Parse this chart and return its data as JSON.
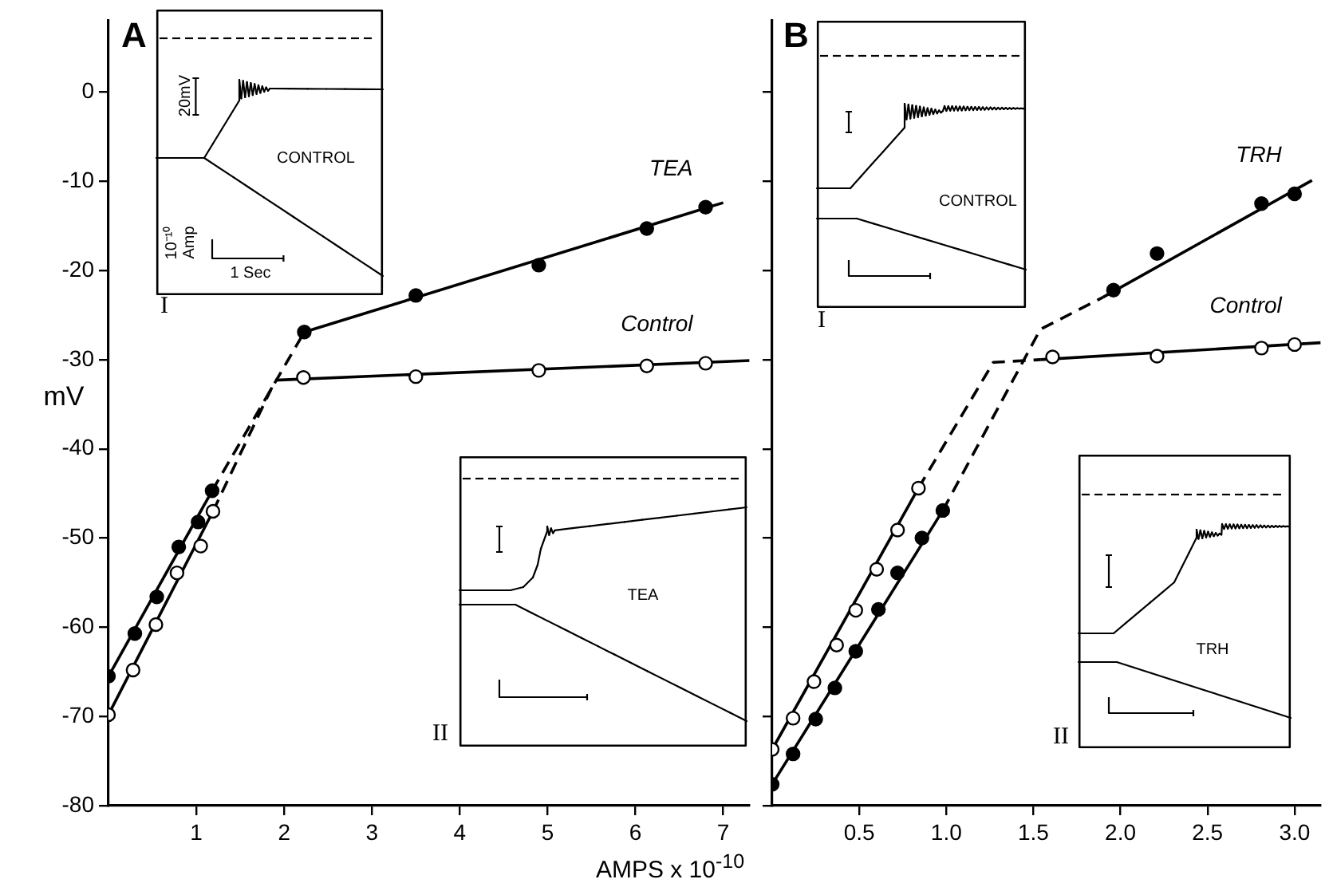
{
  "chart_data": [
    {
      "type": "scatter",
      "xlabel": "AMPS x 10$^{-10}$",
      "ylabel": "mV",
      "xlim": [
        0,
        7.3
      ],
      "xticks": [
        1,
        2,
        3,
        4,
        5,
        6,
        7
      ],
      "ylim": [
        -80,
        8
      ],
      "yticks": [
        -80,
        -70,
        -60,
        -50,
        -40,
        -30,
        -20,
        -10,
        0
      ],
      "marker": "circle",
      "legend": false,
      "grid": false,
      "annotations": [
        "A",
        "20mV",
        "CONTROL",
        "10⁻¹⁰ Amp",
        "1 Sec",
        "I",
        "TEA",
        "II"
      ],
      "series": [
        {
          "name": "TEA",
          "type": "scatter",
          "color": "#000000",
          "x": [
            0,
            0.3,
            0.55,
            0.8,
            1.02,
            1.18,
            2.23,
            3.5,
            4.9,
            6.13,
            6.8
          ],
          "values": [
            -65.5,
            -60.7,
            -56.6,
            -51,
            -48.2,
            -44.7,
            -26.9,
            -22.8,
            -19.4,
            -15.3,
            -12.9
          ]
        },
        {
          "name": "Control",
          "type": "scatter",
          "color": "#ffffff",
          "x": [
            0,
            0.28,
            0.54,
            0.78,
            1.05,
            1.19,
            2.22,
            3.5,
            4.9,
            6.13,
            6.8
          ],
          "values": [
            -69.8,
            -64.8,
            -59.7,
            -53.9,
            -50.9,
            -47,
            -32,
            -31.9,
            -31.2,
            -30.7,
            -30.4
          ]
        },
        {
          "type": "line",
          "color": "#000000",
          "marker": "none",
          "line_style": "solid",
          "x": [
            0,
            1.18
          ],
          "values": [
            -65.5,
            -44.7
          ]
        },
        {
          "type": "line",
          "color": "#000000",
          "marker": "none",
          "line_style": "dashed",
          "x": [
            1.18,
            2.23
          ],
          "values": [
            -44.7,
            -26.9
          ]
        },
        {
          "type": "line",
          "color": "#000000",
          "marker": "none",
          "line_style": "solid",
          "x": [
            2.23,
            7.0
          ],
          "values": [
            -26.9,
            -12.4
          ]
        },
        {
          "type": "line",
          "color": "#000000",
          "marker": "none",
          "line_style": "solid",
          "x": [
            0,
            1.19
          ],
          "values": [
            -69.8,
            -47
          ]
        },
        {
          "type": "line",
          "color": "#000000",
          "marker": "none",
          "line_style": "dashed",
          "x": [
            1.19,
            1.9
          ],
          "values": [
            -47,
            -32.3
          ]
        },
        {
          "type": "line",
          "color": "#000000",
          "marker": "none",
          "line_style": "solid",
          "x": [
            1.9,
            7.3
          ],
          "values": [
            -32.3,
            -30.1
          ]
        }
      ]
    },
    {
      "type": "scatter",
      "xlim": [
        0,
        3.15
      ],
      "xticks": [
        0.5,
        {
          "value": 1,
          "label": "1.0"
        },
        1.5,
        {
          "value": 2,
          "label": "2.0"
        },
        2.5,
        {
          "value": 3,
          "label": "3.0"
        }
      ],
      "ylim": [
        -80,
        8
      ],
      "yticks": [
        {
          "value": -80,
          "label": null
        },
        {
          "value": -70,
          "label": null
        },
        {
          "value": -60,
          "label": null
        },
        {
          "value": -50,
          "label": null
        },
        {
          "value": -40,
          "label": null
        },
        {
          "value": -30,
          "label": null
        },
        {
          "value": -20,
          "label": null
        },
        {
          "value": -10,
          "label": null
        },
        {
          "value": 0,
          "label": null
        }
      ],
      "tick_labels": "x",
      "marker": "circle",
      "legend": false,
      "grid": false,
      "annotations": [
        "B",
        "CONTROL",
        "I",
        "TRH",
        "II"
      ],
      "series": [
        {
          "name": "TRH",
          "type": "scatter",
          "color": "#000000",
          "x": [
            0,
            0.12,
            0.25,
            0.36,
            0.48,
            0.61,
            0.72,
            0.86,
            0.98,
            1.96,
            2.21,
            2.81,
            3.0
          ],
          "values": [
            -77.6,
            -74.2,
            -70.3,
            -66.8,
            -62.7,
            -58,
            -53.9,
            -50,
            -46.9,
            -22.2,
            -18.1,
            -12.5,
            -11.4
          ]
        },
        {
          "name": "Control",
          "type": "scatter",
          "color": "#ffffff",
          "x": [
            0,
            0.12,
            0.24,
            0.37,
            0.48,
            0.6,
            0.72,
            0.84,
            1.61,
            2.21,
            2.81,
            3.0
          ],
          "values": [
            -73.7,
            -70.2,
            -66.1,
            -62,
            -58.1,
            -53.5,
            -49.1,
            -44.4,
            -29.7,
            -29.6,
            -28.7,
            -28.3
          ]
        },
        {
          "type": "line",
          "color": "#000000",
          "marker": "none",
          "line_style": "solid",
          "x": [
            0,
            0.98
          ],
          "values": [
            -77.6,
            -46.9
          ]
        },
        {
          "type": "line",
          "color": "#000000",
          "marker": "none",
          "line_style": "dashed",
          "x": [
            0.98,
            1.54,
            1.9
          ],
          "values": [
            -46.9,
            -26.6,
            -23
          ]
        },
        {
          "type": "line",
          "color": "#000000",
          "marker": "none",
          "line_style": "solid",
          "x": [
            1.9,
            3.1
          ],
          "values": [
            -23,
            -9.9
          ]
        },
        {
          "type": "line",
          "color": "#000000",
          "marker": "none",
          "line_style": "solid",
          "x": [
            0,
            0.84
          ],
          "values": [
            -73.7,
            -44.4
          ]
        },
        {
          "type": "line",
          "color": "#000000",
          "marker": "none",
          "line_style": "dashed",
          "x": [
            0.84,
            1.27,
            1.54
          ],
          "values": [
            -44.4,
            -30.3,
            -30
          ]
        },
        {
          "type": "line",
          "color": "#000000",
          "marker": "none",
          "line_style": "solid",
          "x": [
            1.54,
            3.15
          ],
          "values": [
            -30,
            -28.1
          ]
        }
      ]
    }
  ]
}
